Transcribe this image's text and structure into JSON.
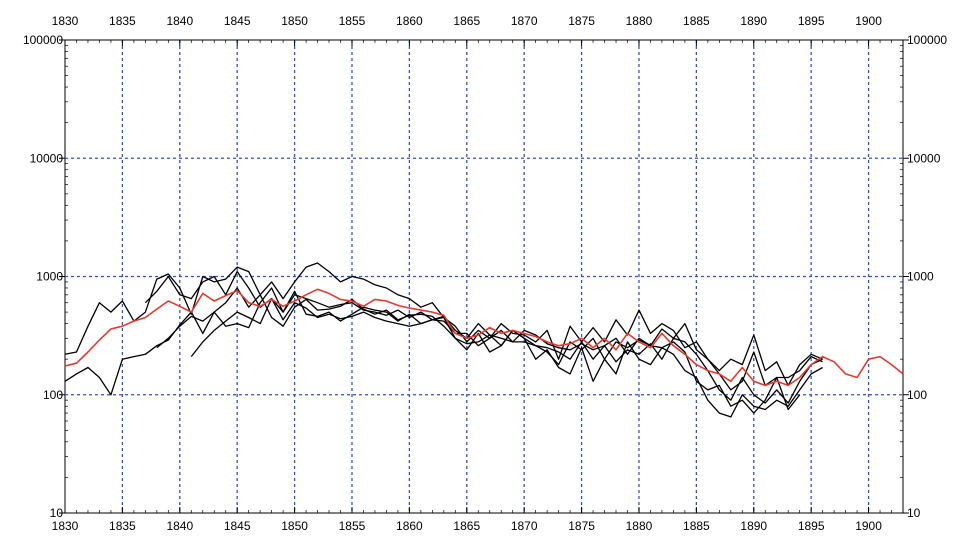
{
  "chart_data": {
    "type": "line",
    "title": "",
    "xlabel": "",
    "ylabel": "",
    "xlim": [
      1830,
      1903
    ],
    "ylim": [
      10,
      100000
    ],
    "y_scale": "log",
    "x_ticks": [
      1830,
      1835,
      1840,
      1845,
      1850,
      1855,
      1860,
      1865,
      1870,
      1875,
      1880,
      1885,
      1890,
      1895,
      1900
    ],
    "x_tick_labels": [
      "1830",
      "1835",
      "1840",
      "1845",
      "1850",
      "1855",
      "1860",
      "1865",
      "1870",
      "1875",
      "1880",
      "1885",
      "1890",
      "1895",
      "1900"
    ],
    "y_ticks": [
      10,
      100,
      1000,
      10000,
      100000
    ],
    "y_tick_labels": [
      "10",
      "100",
      "1000",
      "10000",
      "100000"
    ],
    "grid": true,
    "legend": "none",
    "series": [
      {
        "color": "#e8382e",
        "x": [
          1830,
          1831,
          1832,
          1833,
          1834,
          1835,
          1836,
          1837,
          1838,
          1839,
          1840,
          1841,
          1842,
          1843,
          1844,
          1845,
          1846,
          1847,
          1848,
          1849,
          1850,
          1851,
          1852,
          1853,
          1854,
          1855,
          1856,
          1857,
          1858,
          1859,
          1860,
          1861,
          1862,
          1863,
          1864,
          1865,
          1866,
          1867,
          1868,
          1869,
          1870,
          1871,
          1872,
          1873,
          1874,
          1875,
          1876,
          1877,
          1878,
          1879,
          1880,
          1881,
          1882,
          1883,
          1884,
          1885,
          1886,
          1887,
          1888,
          1889,
          1890,
          1891,
          1892,
          1893,
          1894,
          1895,
          1896,
          1897,
          1898,
          1899,
          1900,
          1901,
          1902,
          1903
        ],
        "values": [
          175,
          185,
          230,
          290,
          360,
          380,
          420,
          450,
          530,
          620,
          560,
          500,
          720,
          620,
          690,
          760,
          600,
          560,
          640,
          560,
          620,
          700,
          780,
          720,
          640,
          620,
          560,
          640,
          620,
          570,
          540,
          520,
          500,
          470,
          330,
          300,
          320,
          370,
          330,
          350,
          330,
          310,
          280,
          260,
          270,
          300,
          250,
          300,
          240,
          330,
          280,
          250,
          330,
          260,
          220,
          180,
          160,
          150,
          130,
          170,
          130,
          120,
          130,
          120,
          140,
          180,
          210,
          190,
          150,
          140,
          200,
          210,
          180,
          150
        ]
      },
      {
        "color": "#000000",
        "x": [
          1830,
          1831,
          1832,
          1833,
          1834,
          1835,
          1836,
          1837,
          1838,
          1839,
          1840,
          1841,
          1842,
          1843,
          1844,
          1845,
          1846,
          1847,
          1848,
          1849,
          1850,
          1851,
          1852,
          1853,
          1854,
          1855,
          1856,
          1857,
          1858,
          1859,
          1860,
          1861,
          1862,
          1863,
          1864,
          1865,
          1866,
          1867,
          1868,
          1869,
          1870,
          1871,
          1872,
          1873,
          1874,
          1875,
          1876,
          1877,
          1878,
          1879,
          1880,
          1881,
          1882,
          1883,
          1884,
          1885,
          1886,
          1887,
          1888,
          1889,
          1890,
          1891,
          1892,
          1893,
          1894,
          1895,
          1896
        ],
        "values": [
          220,
          230,
          380,
          600,
          500,
          620,
          420,
          500,
          950,
          1050,
          800,
          480,
          1000,
          900,
          950,
          1200,
          1100,
          700,
          900,
          650,
          900,
          1200,
          1300,
          1100,
          900,
          1000,
          950,
          850,
          800,
          700,
          650,
          550,
          600,
          450,
          380,
          280,
          350,
          300,
          400,
          330,
          320,
          280,
          350,
          200,
          380,
          280,
          370,
          280,
          430,
          320,
          520,
          330,
          400,
          350,
          250,
          280,
          200,
          160,
          200,
          180,
          320,
          160,
          190,
          120,
          180,
          220,
          200
        ]
      },
      {
        "color": "#000000",
        "x": [
          1830,
          1831,
          1832,
          1833,
          1834,
          1835,
          1836,
          1837,
          1838,
          1839,
          1840,
          1841,
          1842,
          1843,
          1844,
          1845,
          1846,
          1847,
          1848,
          1849,
          1850,
          1851,
          1852,
          1853,
          1854,
          1855,
          1856,
          1857,
          1858,
          1859,
          1860,
          1861,
          1862,
          1863,
          1864,
          1865,
          1866,
          1867,
          1868,
          1869,
          1870,
          1871,
          1872,
          1873,
          1874,
          1875,
          1876,
          1877,
          1878,
          1879,
          1880,
          1881,
          1882,
          1883,
          1884,
          1885,
          1886,
          1887,
          1888,
          1889,
          1890,
          1891,
          1892,
          1893,
          1894,
          1895,
          1896
        ],
        "values": [
          130,
          150,
          170,
          140,
          100,
          200,
          210,
          220,
          260,
          290,
          390,
          500,
          330,
          500,
          380,
          400,
          370,
          600,
          800,
          500,
          750,
          480,
          460,
          500,
          420,
          480,
          550,
          520,
          500,
          420,
          480,
          400,
          430,
          450,
          300,
          240,
          330,
          230,
          260,
          350,
          300,
          200,
          240,
          170,
          150,
          250,
          130,
          200,
          150,
          280,
          200,
          180,
          250,
          220,
          160,
          140,
          90,
          70,
          65,
          100,
          80,
          75,
          90,
          80,
          110,
          150,
          170
        ]
      },
      {
        "color": "#000000",
        "x": [
          1837,
          1838,
          1839,
          1840,
          1841,
          1842,
          1843,
          1844,
          1845,
          1846,
          1847,
          1848,
          1849,
          1850,
          1851,
          1852,
          1853,
          1854,
          1855,
          1856,
          1857,
          1858,
          1859,
          1860,
          1861,
          1862,
          1863,
          1864,
          1865,
          1866,
          1867,
          1868,
          1869,
          1870,
          1871,
          1872,
          1873,
          1874,
          1875,
          1876,
          1877,
          1878,
          1879,
          1880,
          1881,
          1882,
          1883,
          1884,
          1885,
          1886,
          1887,
          1888,
          1889,
          1890,
          1891,
          1892,
          1893,
          1894,
          1895,
          1896
        ],
        "values": [
          600,
          750,
          1000,
          700,
          650,
          900,
          1000,
          700,
          1100,
          800,
          550,
          650,
          500,
          700,
          650,
          600,
          550,
          580,
          600,
          520,
          500,
          470,
          520,
          450,
          500,
          430,
          460,
          350,
          300,
          400,
          320,
          260,
          350,
          300,
          260,
          230,
          180,
          280,
          240,
          300,
          200,
          280,
          250,
          290,
          260,
          360,
          300,
          400,
          240,
          200,
          150,
          110,
          130,
          230,
          120,
          140,
          140,
          160,
          210,
          190
        ]
      },
      {
        "color": "#000000",
        "x": [
          1841,
          1842,
          1843,
          1844,
          1845,
          1846,
          1847,
          1848,
          1849,
          1850,
          1851,
          1852,
          1853,
          1854,
          1855,
          1856,
          1857,
          1858,
          1859,
          1860,
          1861,
          1862,
          1863,
          1864,
          1865,
          1866,
          1867,
          1868,
          1869,
          1870,
          1871,
          1872,
          1873,
          1874,
          1875,
          1876,
          1877,
          1878,
          1879,
          1880,
          1881,
          1882,
          1883,
          1884,
          1885,
          1886,
          1887,
          1888,
          1889,
          1890,
          1891,
          1892,
          1893,
          1894,
          1895,
          1896
        ],
        "values": [
          210,
          280,
          350,
          420,
          500,
          450,
          400,
          650,
          430,
          600,
          540,
          450,
          480,
          440,
          460,
          500,
          450,
          420,
          400,
          380,
          400,
          430,
          420,
          330,
          330,
          260,
          300,
          350,
          280,
          280,
          260,
          250,
          230,
          200,
          280,
          200,
          260,
          190,
          240,
          220,
          270,
          200,
          300,
          280,
          220,
          160,
          110,
          90,
          140,
          100,
          85,
          110,
          85,
          130,
          180,
          200
        ]
      },
      {
        "color": "#000000",
        "x": [
          1838,
          1839,
          1840,
          1841,
          1842,
          1843,
          1844,
          1845,
          1846,
          1847,
          1848,
          1849,
          1850,
          1851,
          1852,
          1853,
          1854,
          1855,
          1856,
          1857,
          1858,
          1859,
          1860,
          1861,
          1862,
          1863,
          1864,
          1865,
          1866,
          1867,
          1868,
          1869,
          1870,
          1871,
          1872,
          1873,
          1874,
          1875,
          1876,
          1877,
          1878,
          1879,
          1880,
          1881,
          1882,
          1883,
          1884,
          1885,
          1886,
          1887,
          1888,
          1889,
          1890,
          1891,
          1892,
          1893,
          1894
        ],
        "values": [
          250,
          300,
          380,
          460,
          420,
          500,
          600,
          800,
          550,
          700,
          450,
          380,
          550,
          640,
          520,
          530,
          560,
          640,
          530,
          480,
          520,
          430,
          470,
          480,
          460,
          380,
          300,
          270,
          280,
          320,
          300,
          280,
          350,
          320,
          270,
          250,
          240,
          270,
          240,
          260,
          300,
          220,
          300,
          260,
          250,
          280,
          230,
          130,
          110,
          120,
          80,
          90,
          70,
          90,
          140,
          75,
          100
        ]
      }
    ]
  }
}
